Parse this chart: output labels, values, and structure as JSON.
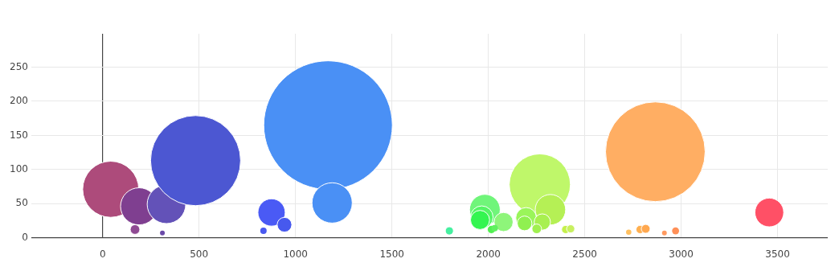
{
  "chart_data": {
    "type": "bubble",
    "x": [
      42,
      189,
      331,
      482,
      168,
      310,
      876,
      943,
      834,
      1169,
      1190,
      1798,
      1982,
      1966,
      1957,
      2079,
      2016,
      2033,
      2267,
      2196,
      2188,
      2322,
      2280,
      2251,
      2401,
      2427,
      2866,
      3457,
      2728,
      2787,
      2816,
      2913,
      2971
    ],
    "values": [
      71,
      46,
      49,
      113,
      12,
      7,
      37,
      19,
      10,
      165,
      51,
      10,
      41,
      30,
      26,
      23,
      12,
      14,
      78,
      29,
      21,
      41,
      23,
      13,
      12,
      13,
      126,
      37,
      8,
      12,
      13,
      7,
      10
    ],
    "sizes": [
      0.19,
      0.083,
      0.09,
      0.49,
      0.0056,
      0.0014,
      0.045,
      0.013,
      0.0025,
      1,
      0.098,
      0.004,
      0.057,
      0.031,
      0.022,
      0.022,
      0.004,
      0.0025,
      0.226,
      0.026,
      0.013,
      0.056,
      0.016,
      0.0056,
      0.004,
      0.004,
      0.6,
      0.05,
      0.0017,
      0.004,
      0.0047,
      0.0014,
      0.003
    ],
    "colors": [
      "#ad4b7b",
      "#7f3f90",
      "#6352b8",
      "#4c57d2",
      "#8f4a93",
      "#6a4aa8",
      "#4a5af5",
      "#4759ee",
      "#4a5af0",
      "#4a90f5",
      "#4a90f5",
      "#45f0a0",
      "#70f57a",
      "#55f565",
      "#33f550",
      "#8ef57a",
      "#50f050",
      "#60f060",
      "#bff76a",
      "#9af55a",
      "#90f050",
      "#b5f055",
      "#a8f050",
      "#a0f050",
      "#c5f04a",
      "#c8f060",
      "#ffae63",
      "#ff5066",
      "#ffc060",
      "#ffb050",
      "#ffa850",
      "#ff9a60",
      "#ff9058"
    ],
    "xlim": [
      -370,
      3760
    ],
    "xticks": [
      0,
      500,
      1000,
      1500,
      2000,
      2500,
      3000,
      3500
    ],
    "ylim": [
      0,
      299
    ],
    "yticks": [
      0,
      50,
      100,
      150,
      200,
      250
    ],
    "grid": true,
    "legend": false
  }
}
